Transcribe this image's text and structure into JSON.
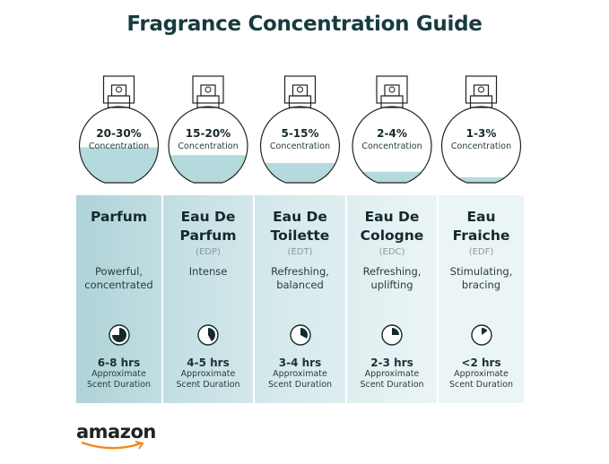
{
  "title": "Fragrance Concentration Guide",
  "colors": {
    "title": "#173b3f",
    "liquid": "#b5dade",
    "panel_left": "#a9d1d6",
    "panel_right": "#eef7f8",
    "pie": "#15292c"
  },
  "concentration_label": "Concentration",
  "duration_label": [
    "Approximate",
    "Scent Duration"
  ],
  "types": [
    {
      "range": "20-30%",
      "fill_level": 0.45,
      "name": [
        "Parfum"
      ],
      "abbr": "",
      "desc": [
        "Powerful,",
        "concentrated"
      ],
      "hours": "6-8 hrs",
      "duration_fraction": 0.75,
      "bg": "#aed3d8"
    },
    {
      "range": "15-20%",
      "fill_level": 0.35,
      "name": [
        "Eau De",
        "Parfum"
      ],
      "abbr": "(EDP)",
      "desc": [
        "Intense",
        ""
      ],
      "hours": "4-5 hrs",
      "duration_fraction": 0.42,
      "bg": "#c1dee2"
    },
    {
      "range": "5-15%",
      "fill_level": 0.25,
      "name": [
        "Eau De",
        "Toilette"
      ],
      "abbr": "(EDT)",
      "desc": [
        "Refreshing,",
        "balanced"
      ],
      "hours": "3-4 hrs",
      "duration_fraction": 0.33,
      "bg": "#d2e7ea"
    },
    {
      "range": "2-4%",
      "fill_level": 0.14,
      "name": [
        "Eau De",
        "Cologne"
      ],
      "abbr": "(EDC)",
      "desc": [
        "Refreshing,",
        "uplifting"
      ],
      "hours": "2-3 hrs",
      "duration_fraction": 0.25,
      "bg": "#dfeef0"
    },
    {
      "range": "1-3%",
      "fill_level": 0.07,
      "name": [
        "Eau",
        "Fraiche"
      ],
      "abbr": "(EDF)",
      "desc": [
        "Stimulating,",
        "bracing"
      ],
      "hours": "<2 hrs",
      "duration_fraction": 0.15,
      "bg": "#ecf5f6"
    }
  ],
  "logo": "amazon"
}
